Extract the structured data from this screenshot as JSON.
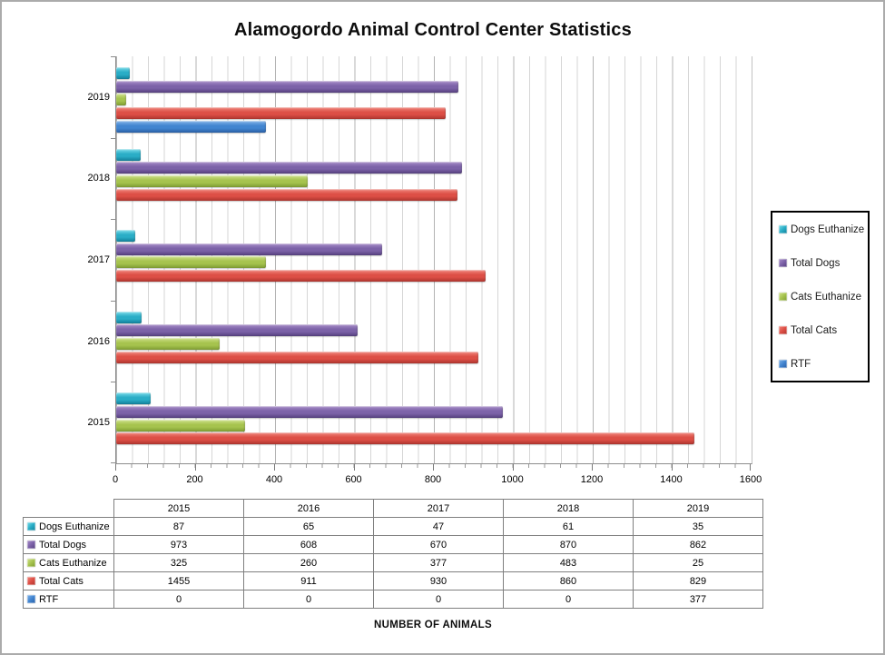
{
  "chart_data": {
    "type": "bar",
    "orientation": "horizontal",
    "title": "Alamogordo Animal Control Center Statistics",
    "xlabel": "NUMBER OF ANIMALS",
    "categories": [
      "2015",
      "2016",
      "2017",
      "2018",
      "2019"
    ],
    "category_axis_order_top_to_bottom": [
      "2019",
      "2018",
      "2017",
      "2016",
      "2015"
    ],
    "series": [
      {
        "name": "Dogs Euthanize",
        "values": [
          87,
          65,
          47,
          61,
          35
        ],
        "color_light": "#7adcea",
        "color_base": "#2aadc6",
        "color_dark": "#137f99"
      },
      {
        "name": "Total Dogs",
        "values": [
          973,
          608,
          670,
          870,
          862
        ],
        "color_light": "#a98fc9",
        "color_base": "#7c62a8",
        "color_dark": "#55407e"
      },
      {
        "name": "Cats Euthanize",
        "values": [
          325,
          260,
          377,
          483,
          25
        ],
        "color_light": "#cfe18c",
        "color_base": "#a6c34e",
        "color_dark": "#7e9c33"
      },
      {
        "name": "Total Cats",
        "values": [
          1455,
          911,
          930,
          860,
          829
        ],
        "color_light": "#f0897f",
        "color_base": "#dd4f46",
        "color_dark": "#ad352f"
      },
      {
        "name": "RTF",
        "values": [
          0,
          0,
          0,
          0,
          377
        ],
        "color_light": "#82b3e8",
        "color_base": "#4285d0",
        "color_dark": "#2a5fa5"
      }
    ],
    "xlim": [
      0,
      1600
    ],
    "x_ticks": [
      0,
      200,
      400,
      600,
      800,
      1000,
      1200,
      1400,
      1600
    ],
    "minor_gridline_interval": 40,
    "major_gridline_interval": 200,
    "grid": true,
    "legend_position": "right"
  },
  "table": {
    "corner_label": "",
    "column_headers": [
      "2015",
      "2016",
      "2017",
      "2018",
      "2019"
    ],
    "row_headers": [
      "Dogs Euthanize",
      "Total Dogs",
      "Cats Euthanize",
      "Total Cats",
      "RTF"
    ],
    "cells": [
      [
        "87",
        "65",
        "47",
        "61",
        "35"
      ],
      [
        "973",
        "608",
        "670",
        "870",
        "862"
      ],
      [
        "325",
        "260",
        "377",
        "483",
        "25"
      ],
      [
        "1455",
        "911",
        "930",
        "860",
        "829"
      ],
      [
        "0",
        "0",
        "0",
        "0",
        "377"
      ]
    ]
  },
  "legend": {
    "items": [
      "Dogs Euthanize",
      "Total Dogs",
      "Cats Euthanize",
      "Total Cats",
      "RTF"
    ]
  }
}
